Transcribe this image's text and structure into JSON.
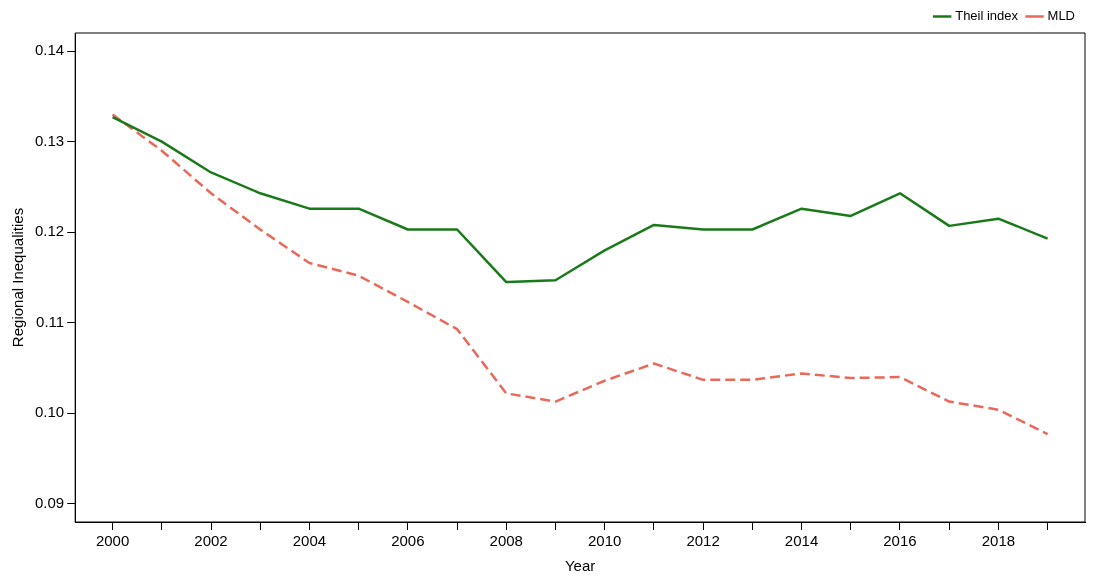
{
  "chart_data": {
    "type": "line",
    "xlabel": "Year",
    "ylabel": "Regional Inequalities",
    "x": [
      2000,
      2001,
      2002,
      2003,
      2004,
      2005,
      2006,
      2007,
      2008,
      2009,
      2010,
      2011,
      2012,
      2013,
      2014,
      2015,
      2016,
      2017,
      2018,
      2019
    ],
    "series": [
      {
        "name": "Theil index",
        "color": "#1a7a1a",
        "line_style": "solid",
        "values": [
          0.1327,
          0.13,
          0.1266,
          0.1243,
          0.1226,
          0.1226,
          0.1203,
          0.1203,
          0.1145,
          0.1147,
          0.118,
          0.1208,
          0.1203,
          0.1203,
          0.1226,
          0.1218,
          0.1243,
          0.1207,
          0.1215,
          0.1193
        ]
      },
      {
        "name": "MLD",
        "color": "#e8685a",
        "line_style": "dashed",
        "values": [
          0.133,
          0.129,
          0.1243,
          0.1203,
          0.1166,
          0.1152,
          0.1123,
          0.1093,
          0.1022,
          0.1013,
          0.1036,
          0.1055,
          0.1037,
          0.1037,
          0.1044,
          0.1039,
          0.104,
          0.1013,
          0.1004,
          0.0977
        ]
      }
    ],
    "xlim": [
      1999.24,
      2019.76
    ],
    "xticks": [
      2000,
      {
        "value": 2001,
        "label": null
      },
      2002,
      {
        "value": 2003,
        "label": null
      },
      2004,
      {
        "value": 2005,
        "label": null
      },
      2006,
      {
        "value": 2007,
        "label": null
      },
      2008,
      {
        "value": 2009,
        "label": null
      },
      2010,
      {
        "value": 2011,
        "label": null
      },
      2012,
      {
        "value": 2013,
        "label": null
      },
      2014,
      {
        "value": 2015,
        "label": null
      },
      2016,
      {
        "value": 2017,
        "label": null
      },
      2018,
      {
        "value": 2019,
        "label": null
      }
    ],
    "ylim": [
      0.088,
      0.142
    ],
    "yticks": [
      0.09,
      {
        "value": 0.1,
        "label": "0.10"
      },
      0.11,
      0.12,
      0.13,
      0.14
    ],
    "grid": false,
    "legend": "top right",
    "marker": "none"
  }
}
